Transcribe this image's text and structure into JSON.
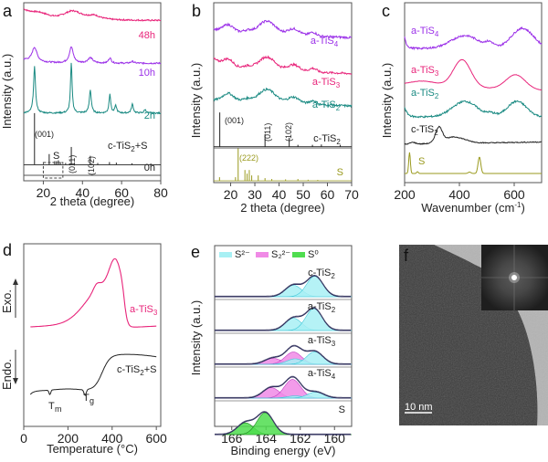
{
  "chart_data": [
    {
      "panel": "a",
      "type": "line",
      "xlabel": "2 theta (degree)",
      "ylabel": "Intensity (a.u.)",
      "xlim": [
        10,
        80
      ],
      "xticks": [
        20,
        40,
        60,
        80
      ],
      "series": [
        {
          "name": "48h",
          "color": "#e8247a",
          "offset": 0.9,
          "peaks": [
            [
              35,
              0.05,
              6
            ],
            [
              46,
              0.02,
              4
            ]
          ],
          "decay": 0.06
        },
        {
          "name": "10h",
          "color": "#9b30e8",
          "offset": 0.66,
          "peaks": [
            [
              15.5,
              0.08,
              1.5
            ],
            [
              34.3,
              0.09,
              1.2
            ],
            [
              44,
              0.03,
              1.5
            ],
            [
              54,
              0.03,
              0.8
            ],
            [
              65.5,
              0.01,
              1
            ]
          ],
          "decay": 0.02
        },
        {
          "name": "2h",
          "color": "#1a8a82",
          "offset": 0.38,
          "peaks": [
            [
              15.5,
              0.26,
              0.6
            ],
            [
              34.3,
              0.28,
              0.5
            ],
            [
              44,
              0.13,
              0.6
            ],
            [
              54,
              0.11,
              0.5
            ],
            [
              57,
              0.04,
              0.6
            ],
            [
              65.5,
              0.05,
              0.6
            ],
            [
              72,
              0.02,
              0.6
            ]
          ],
          "decay": 0.0
        },
        {
          "name": "0h",
          "color": "#222222",
          "offset": 0.09,
          "sticks": [
            [
              15.5,
              0.29
            ],
            [
              23,
              0.06
            ],
            [
              25.8,
              0.02
            ],
            [
              26.7,
              0.02
            ],
            [
              27.7,
              0.025
            ],
            [
              28.7,
              0.015
            ],
            [
              31.4,
              0.01
            ],
            [
              34.3,
              0.1
            ],
            [
              44,
              0.05
            ],
            [
              47.8,
              0.01
            ],
            [
              53.8,
              0.015
            ],
            [
              57.3,
              0.012
            ],
            [
              65.3,
              0.008
            ]
          ]
        }
      ],
      "annotations": [
        "(001)",
        "S",
        "(011)",
        "(102)",
        "c-TiS2+S"
      ],
      "sample_label": "c-TiS₂+S"
    },
    {
      "panel": "b",
      "type": "line",
      "xlabel": "2 theta (degree)",
      "ylabel": "Intensity (a.u.)",
      "xlim": [
        13,
        70
      ],
      "xticks": [
        20,
        30,
        40,
        50,
        60,
        70
      ],
      "series": [
        {
          "name": "a-TiS₄",
          "color": "#9b30e8",
          "offset": 0.84
        },
        {
          "name": "a-TiS₃",
          "color": "#e8247a",
          "offset": 0.64
        },
        {
          "name": "a-TiS₂",
          "color": "#1a8a82",
          "offset": 0.46
        },
        {
          "name": "c-TiS₂",
          "color": "#222222",
          "offset": 0.2,
          "sticks": [
            [
              15.5,
              0.19
            ],
            [
              34.2,
              0.07
            ],
            [
              44.2,
              0.05
            ],
            [
              47.8,
              0.01
            ],
            [
              53.8,
              0.01
            ],
            [
              57.5,
              0.012
            ],
            [
              65.3,
              0.01
            ]
          ]
        },
        {
          "name": "S",
          "color": "#9a9a1e",
          "offset": 0.01,
          "sticks": [
            [
              15.4,
              0.02
            ],
            [
              22,
              0.02
            ],
            [
              23.1,
              0.18
            ],
            [
              25.9,
              0.06
            ],
            [
              26.8,
              0.04
            ],
            [
              27.7,
              0.06
            ],
            [
              28.7,
              0.03
            ],
            [
              31.4,
              0.03
            ],
            [
              34.2,
              0.015
            ],
            [
              37,
              0.01
            ],
            [
              42.7,
              0.008
            ],
            [
              47.8,
              0.01
            ],
            [
              52,
              0.006
            ],
            [
              56,
              0.005
            ]
          ]
        }
      ],
      "annotations": [
        "(001)",
        "(011)",
        "(102)",
        "(222)"
      ]
    },
    {
      "panel": "c",
      "type": "line",
      "xlabel": "Wavenumber (cm⁻¹)",
      "ylabel": "Intensity (a.u.)",
      "xlim": [
        200,
        700
      ],
      "xticks": [
        200,
        400,
        600
      ],
      "series": [
        {
          "name": "a-TiS₄",
          "color": "#9b30e8"
        },
        {
          "name": "a-TiS₃",
          "color": "#e8247a"
        },
        {
          "name": "a-TiS₂",
          "color": "#1a8a82"
        },
        {
          "name": "c-TiS₂",
          "color": "#222222"
        },
        {
          "name": "S",
          "color": "#9a9a1e"
        }
      ]
    },
    {
      "panel": "d",
      "type": "line",
      "xlabel": "Temperature (°C)",
      "xlim": [
        0,
        620
      ],
      "xticks": [
        0,
        200,
        400,
        600
      ],
      "ylabel_top": "Exo.",
      "ylabel_bottom": "Endo.",
      "series": [
        {
          "name": "a-TiS₃",
          "color": "#e8247a"
        },
        {
          "name": "c-TiS₂+S",
          "color": "#222222"
        }
      ],
      "annotations": [
        "Tm",
        "Tg"
      ]
    },
    {
      "panel": "e",
      "type": "area",
      "xlabel": "Binding energy (eV)",
      "ylabel": "Intensity (a.u.)",
      "xlim": [
        167,
        159
      ],
      "xticks": [
        166,
        164,
        162,
        160
      ],
      "legend": [
        {
          "name": "S²⁻",
          "color": "#a8f0f4"
        },
        {
          "name": "S₂²⁻",
          "color": "#f08ae6"
        },
        {
          "name": "S⁰",
          "color": "#4fdd4f"
        }
      ],
      "series": [
        {
          "name": "c-TiS₂",
          "components": [
            {
              "type": "S2-",
              "center": 162.4,
              "amp": 0.42
            },
            {
              "type": "S2-",
              "center": 161.15,
              "amp": 0.75
            }
          ]
        },
        {
          "name": "a-TiS₂",
          "components": [
            {
              "type": "S2-",
              "center": 162.4,
              "amp": 0.45
            },
            {
              "type": "S2-",
              "center": 161.2,
              "amp": 0.8
            }
          ]
        },
        {
          "name": "a-TiS₃",
          "components": [
            {
              "type": "S22-",
              "center": 163.6,
              "amp": 0.22
            },
            {
              "type": "S22-",
              "center": 162.4,
              "amp": 0.45
            },
            {
              "type": "S2-",
              "center": 162.3,
              "amp": 0.2
            },
            {
              "type": "S2-",
              "center": 161.15,
              "amp": 0.46
            }
          ]
        },
        {
          "name": "a-TiS₄",
          "components": [
            {
              "type": "S22-",
              "center": 163.7,
              "amp": 0.38
            },
            {
              "type": "S22-",
              "center": 162.45,
              "amp": 0.68
            },
            {
              "type": "S2-",
              "center": 162.3,
              "amp": 0.08
            },
            {
              "type": "S2-",
              "center": 161.1,
              "amp": 0.22
            }
          ]
        },
        {
          "name": "S",
          "components": [
            {
              "type": "S0",
              "center": 165.2,
              "amp": 0.43
            },
            {
              "type": "S0",
              "center": 164.05,
              "amp": 0.8
            }
          ]
        }
      ]
    },
    {
      "panel": "f",
      "type": "image",
      "description": "TEM micrograph with FFT inset",
      "scale_bar": "10 nm"
    }
  ],
  "labels": {
    "a": "a",
    "b": "b",
    "c": "c",
    "d": "d",
    "e": "e",
    "f": "f",
    "a_xlabel": "2 theta (degree)",
    "b_xlabel": "2 theta (degree)",
    "c_xlabel": "Wavenumber (cm",
    "c_xlabel_sup": "-1",
    "c_xlabel_end": ")",
    "d_xlabel": "Temperature (°C)",
    "e_xlabel": "Binding energy (eV)",
    "ylabel": "Intensity (a.u.)",
    "exo": "Exo.",
    "endo": "Endo.",
    "scale": "10 nm"
  }
}
